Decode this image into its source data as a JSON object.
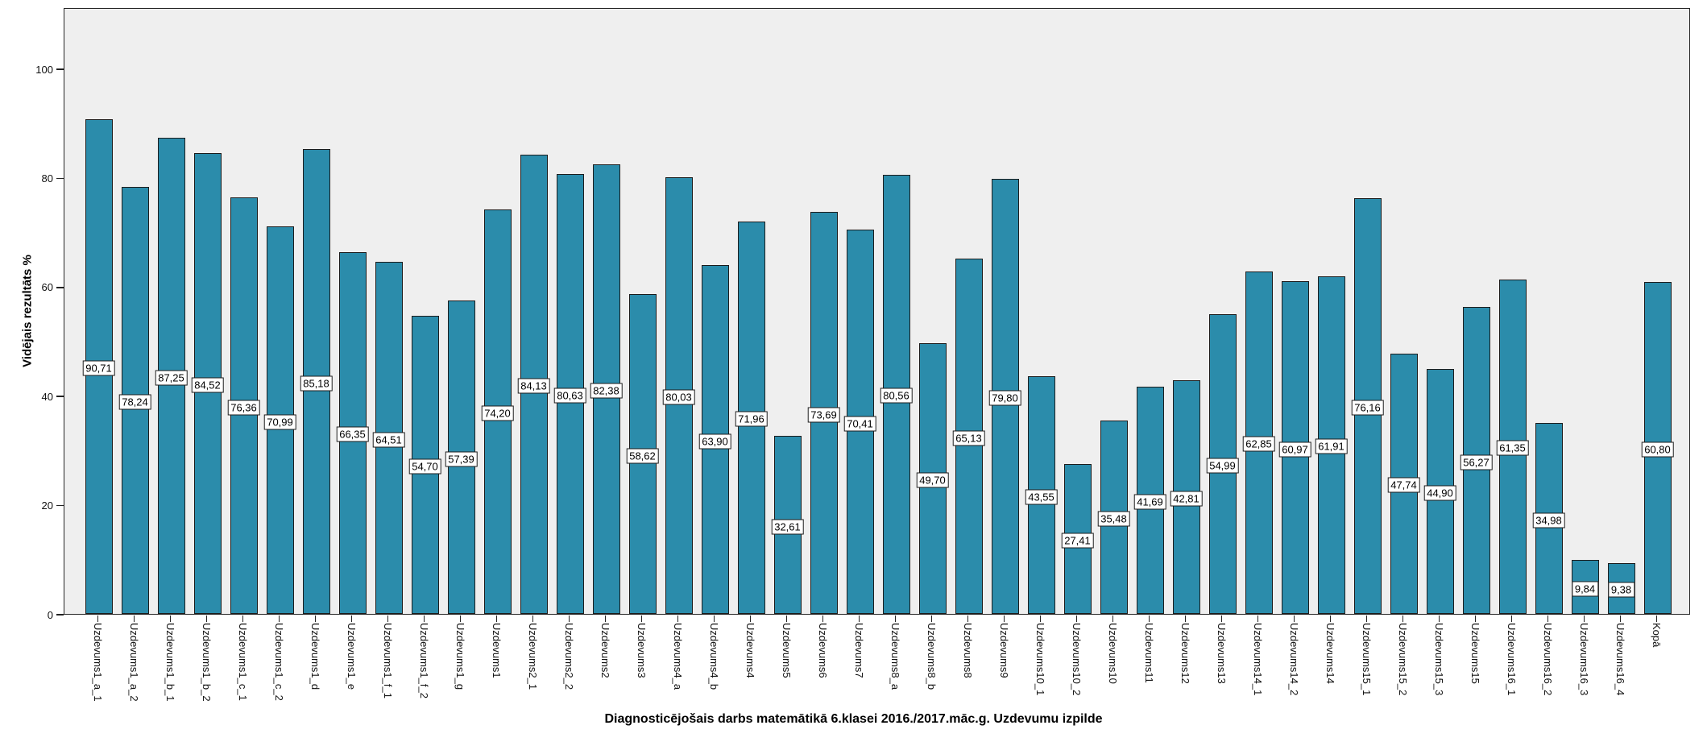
{
  "chart_data": {
    "type": "bar",
    "title": "Diagnosticējošais darbs matemātikā 6.klasei 2016./2017.māc.g. Uzdevumu izpilde",
    "xlabel": "",
    "ylabel": "Vidējais rezultāts %",
    "legend_position": "none",
    "grid": false,
    "ylim": [
      0,
      111
    ],
    "y_ticks": [
      0,
      20,
      40,
      60,
      80,
      100
    ],
    "y_tick_labels": [
      "0",
      "20",
      "40",
      "60",
      "80",
      "100"
    ],
    "categories": [
      "Uzdevums1_a_1",
      "Uzdevums1_a_2",
      "Uzdevums1_b_1",
      "Uzdevums1_b_2",
      "Uzdevums1_c_1",
      "Uzdevums1_c_2",
      "Uzdevums1_d",
      "Uzdevums1_e",
      "Uzdevums1_f_1",
      "Uzdevums1_f_2",
      "Uzdevums1_g",
      "Uzdevums1",
      "Uzdevums2_1",
      "Uzdevums2_2",
      "Uzdevums2",
      "Uzdevums3",
      "Uzdevums4_a",
      "Uzdevums4_b",
      "Uzdevums4",
      "Uzdevums5",
      "Uzdevums6",
      "Uzdevums7",
      "Uzdevums8_a",
      "Uzdevums8_b",
      "Uzdevums8",
      "Uzdevums9",
      "Uzdevums10_1",
      "Uzdevums10_2",
      "Uzdevums10",
      "Uzdevums11",
      "Uzdevums12",
      "Uzdevums13",
      "Uzdevums14_1",
      "Uzdevums14_2",
      "Uzdevums14",
      "Uzdevums15_1",
      "Uzdevums15_2",
      "Uzdevums15_3",
      "Uzdevums15",
      "Uzdevums16_1",
      "Uzdevums16_2",
      "Uzdevums16_3",
      "Uzdevums16_4",
      "Kopā"
    ],
    "values": [
      90.71,
      78.24,
      87.25,
      84.52,
      76.36,
      70.99,
      85.18,
      66.35,
      64.51,
      54.7,
      57.39,
      74.2,
      84.13,
      80.63,
      82.38,
      58.62,
      80.03,
      63.9,
      71.96,
      32.61,
      73.69,
      70.41,
      80.56,
      49.7,
      65.13,
      79.8,
      43.55,
      27.41,
      35.48,
      41.69,
      42.81,
      54.99,
      62.85,
      60.97,
      61.91,
      76.16,
      47.74,
      44.9,
      56.27,
      61.35,
      34.98,
      9.84,
      9.38,
      60.8
    ],
    "value_labels": [
      "90,71",
      "78,24",
      "87,25",
      "84,52",
      "76,36",
      "70,99",
      "85,18",
      "66,35",
      "64,51",
      "54,70",
      "57,39",
      "74,20",
      "84,13",
      "80,63",
      "82,38",
      "58,62",
      "80,03",
      "63,90",
      "71,96",
      "32,61",
      "73,69",
      "70,41",
      "80,56",
      "49,70",
      "65,13",
      "79,80",
      "43,55",
      "27,41",
      "35,48",
      "41,69",
      "42,81",
      "54,99",
      "62,85",
      "60,97",
      "61,91",
      "76,16",
      "47,74",
      "44,90",
      "56,27",
      "61,35",
      "34,98",
      "9,84",
      "9,38",
      "60,80"
    ],
    "colors": {
      "bar_fill": "#2b8cab",
      "bar_border": "#1c1c1c",
      "plot_background": "#efefef",
      "figure_background": "#ffffff",
      "label_box_background": "#ffffff",
      "label_box_border": "#1c1c1c",
      "text": "#000000"
    }
  }
}
